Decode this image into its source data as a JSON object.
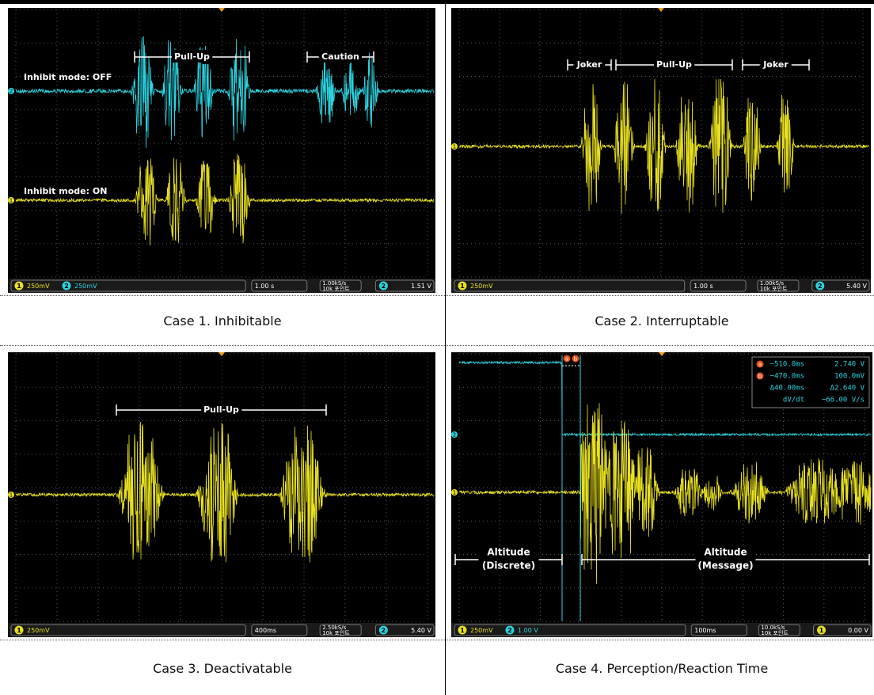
{
  "figure": {
    "cells": [
      {
        "caption": "Case 1. Inhibitable",
        "labels": [
          "Inhibit mode: OFF",
          "Inhibit mode: ON"
        ],
        "brackets": [
          "Pull-Up",
          "Caution"
        ],
        "status": {
          "channels": [
            {
              "id": "1",
              "scale": "250mV"
            },
            {
              "id": "2",
              "scale": "250mV"
            }
          ],
          "timebase": "1.00 s",
          "rate": "1.00kS/s",
          "points": "10k 포인트",
          "trigger": {
            "channel": "2",
            "level": "1.51 V"
          }
        }
      },
      {
        "caption": "Case 2. Interruptable",
        "brackets": [
          "Joker",
          "Pull-Up",
          "Joker"
        ],
        "status": {
          "channels": [
            {
              "id": "1",
              "scale": "250mV"
            }
          ],
          "timebase": "1.00 s",
          "rate": "1.00kS/s",
          "points": "10k 포인트",
          "trigger": {
            "channel": "2",
            "level": "5.40 V"
          }
        }
      },
      {
        "caption": "Case 3. Deactivatable",
        "brackets": [
          "Pull-Up"
        ],
        "status": {
          "channels": [
            {
              "id": "1",
              "scale": "250mV"
            }
          ],
          "timebase": "400ms",
          "rate": "2.50kS/s",
          "points": "10k 포인트",
          "trigger": {
            "channel": "2",
            "level": "5.40 V"
          }
        }
      },
      {
        "caption": "Case 4. Perception/Reaction Time",
        "cursors": [
          "a",
          "b"
        ],
        "readout": [
          [
            "−510.0ms",
            "2.740 V"
          ],
          [
            "−470.0ms",
            "100.0mV"
          ],
          [
            "Δ40.00ms",
            "Δ2.640 V"
          ],
          [
            "dV/dt",
            "−66.00 V/s"
          ]
        ],
        "annotations": [
          [
            "Altitude",
            "(Discrete)"
          ],
          [
            "Altitude",
            "(Message)"
          ]
        ],
        "status": {
          "channels": [
            {
              "id": "1",
              "scale": "250mV"
            },
            {
              "id": "2",
              "scale": "1.00 V"
            }
          ],
          "timebase": "100ms",
          "rate": "10.0kS/s",
          "points": "10k 포인트",
          "trigger": {
            "channel": "1",
            "level": "0.00 V"
          }
        }
      }
    ]
  }
}
